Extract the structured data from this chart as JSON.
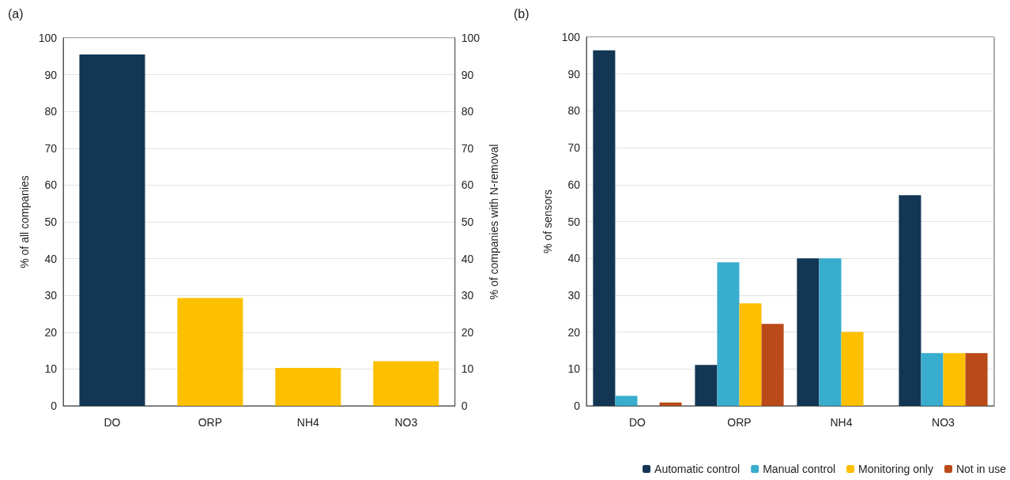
{
  "chart_data": [
    {
      "type": "bar",
      "title": "(a)",
      "ylabel": "% of all companies",
      "y2label": "% of companies with N-removal",
      "categories": [
        "DO",
        "ORP",
        "NH4",
        "NO3"
      ],
      "values": [
        95.5,
        29.3,
        10.3,
        12.1
      ],
      "colors": [
        "#133655",
        "#fdc000",
        "#fdc000",
        "#fdc000"
      ],
      "ylim": [
        0,
        100
      ],
      "yticks": [
        0,
        10,
        20,
        30,
        40,
        50,
        60,
        70,
        80,
        90,
        100
      ],
      "y2lim": [
        0,
        100
      ],
      "y2ticks": [
        0,
        10,
        20,
        30,
        40,
        50,
        60,
        70,
        80,
        90,
        100
      ],
      "grid": "y",
      "legend": false
    },
    {
      "type": "bar",
      "title": "(b)",
      "ylabel": "% of sensors",
      "categories": [
        "DO",
        "ORP",
        "NH4",
        "NO3"
      ],
      "series": [
        {
          "name": "Automatic control",
          "color": "#133655",
          "values": [
            96.4,
            11.1,
            40,
            57.1
          ]
        },
        {
          "name": "Manual control",
          "color": "#38adcd",
          "values": [
            2.7,
            38.9,
            40,
            14.3
          ]
        },
        {
          "name": "Monitoring only",
          "color": "#fdc000",
          "values": [
            0,
            27.8,
            20,
            14.3
          ]
        },
        {
          "name": "Not in use",
          "color": "#bb4a19",
          "values": [
            0.9,
            22.2,
            0,
            14.3
          ]
        }
      ],
      "ylim": [
        0,
        100
      ],
      "yticks": [
        0,
        10,
        20,
        30,
        40,
        50,
        60,
        70,
        80,
        90,
        100
      ],
      "grid": "y",
      "legend": "bottom right"
    }
  ]
}
